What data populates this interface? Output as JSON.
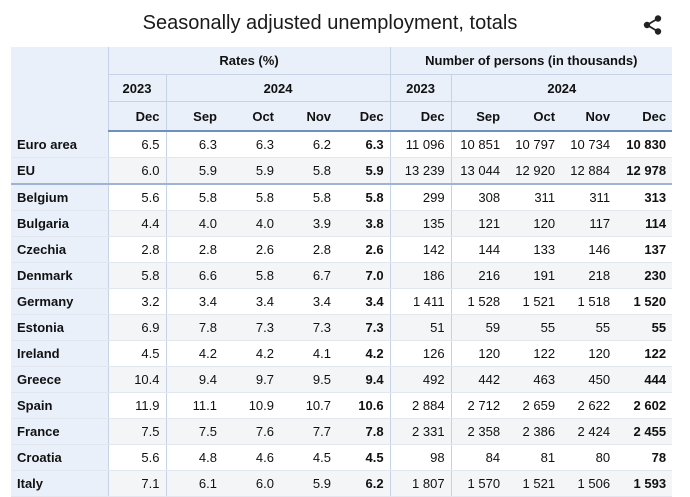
{
  "title": "Seasonally adjusted unemployment, totals",
  "share_icon": "share-icon",
  "table": {
    "group_rates": "Rates (%)",
    "group_persons": "Number of persons (in thousands)",
    "year_2023": "2023",
    "year_2024": "2024",
    "months": [
      "Dec",
      "Sep",
      "Oct",
      "Nov",
      "Dec"
    ],
    "rows": [
      {
        "country": "Euro area",
        "r": [
          "6.5",
          "6.3",
          "6.3",
          "6.2",
          "6.3"
        ],
        "n": [
          "11 096",
          "10 851",
          "10 797",
          "10 734",
          "10 830"
        ]
      },
      {
        "country": "EU",
        "r": [
          "6.0",
          "5.9",
          "5.9",
          "5.8",
          "5.9"
        ],
        "n": [
          "13 239",
          "13 044",
          "12 920",
          "12 884",
          "12 978"
        ]
      },
      {
        "country": "Belgium",
        "r": [
          "5.6",
          "5.8",
          "5.8",
          "5.8",
          "5.8"
        ],
        "n": [
          "299",
          "308",
          "311",
          "311",
          "313"
        ]
      },
      {
        "country": "Bulgaria",
        "r": [
          "4.4",
          "4.0",
          "4.0",
          "3.9",
          "3.8"
        ],
        "n": [
          "135",
          "121",
          "120",
          "117",
          "114"
        ]
      },
      {
        "country": "Czechia",
        "r": [
          "2.8",
          "2.8",
          "2.6",
          "2.8",
          "2.6"
        ],
        "n": [
          "142",
          "144",
          "133",
          "146",
          "137"
        ]
      },
      {
        "country": "Denmark",
        "r": [
          "5.8",
          "6.6",
          "5.8",
          "6.7",
          "7.0"
        ],
        "n": [
          "186",
          "216",
          "191",
          "218",
          "230"
        ]
      },
      {
        "country": "Germany",
        "r": [
          "3.2",
          "3.4",
          "3.4",
          "3.4",
          "3.4"
        ],
        "n": [
          "1 411",
          "1 528",
          "1 521",
          "1 518",
          "1 520"
        ]
      },
      {
        "country": "Estonia",
        "r": [
          "6.9",
          "7.8",
          "7.3",
          "7.3",
          "7.3"
        ],
        "n": [
          "51",
          "59",
          "55",
          "55",
          "55"
        ]
      },
      {
        "country": "Ireland",
        "r": [
          "4.5",
          "4.2",
          "4.2",
          "4.1",
          "4.2"
        ],
        "n": [
          "126",
          "120",
          "122",
          "120",
          "122"
        ]
      },
      {
        "country": "Greece",
        "r": [
          "10.4",
          "9.4",
          "9.7",
          "9.5",
          "9.4"
        ],
        "n": [
          "492",
          "442",
          "463",
          "450",
          "444"
        ]
      },
      {
        "country": "Spain",
        "r": [
          "11.9",
          "11.1",
          "10.9",
          "10.7",
          "10.6"
        ],
        "n": [
          "2 884",
          "2 712",
          "2 659",
          "2 622",
          "2 602"
        ]
      },
      {
        "country": "France",
        "r": [
          "7.5",
          "7.5",
          "7.6",
          "7.7",
          "7.8"
        ],
        "n": [
          "2 331",
          "2 358",
          "2 386",
          "2 424",
          "2 455"
        ]
      },
      {
        "country": "Croatia",
        "r": [
          "5.6",
          "4.8",
          "4.6",
          "4.5",
          "4.5"
        ],
        "n": [
          "98",
          "84",
          "81",
          "80",
          "78"
        ]
      },
      {
        "country": "Italy",
        "r": [
          "7.1",
          "6.1",
          "6.0",
          "5.9",
          "6.2"
        ],
        "n": [
          "1 807",
          "1 570",
          "1 521",
          "1 506",
          "1 593"
        ]
      }
    ]
  }
}
